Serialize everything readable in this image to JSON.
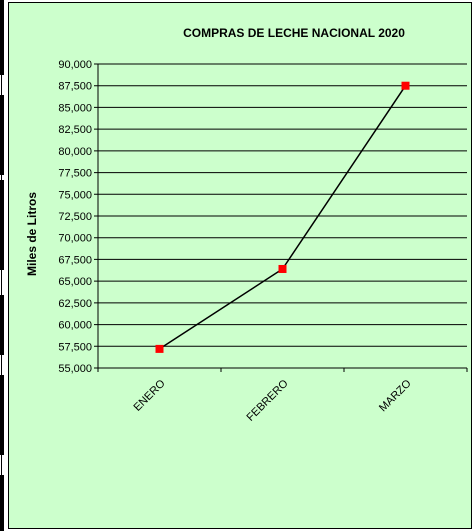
{
  "chart_data": {
    "type": "line",
    "title": "COMPRAS DE LECHE NACIONAL 2020",
    "y_label": "Miles de Litros",
    "categories": [
      "ENERO",
      "FEBRERO",
      "MARZO"
    ],
    "values": [
      57200,
      66400,
      87500
    ],
    "color": "#000000",
    "marker_color": "#ff0000",
    "ylim": [
      55000,
      90000
    ],
    "yticks": [
      {
        "value": 55000,
        "label": "55,000"
      },
      {
        "value": 57500,
        "label": "57,500"
      },
      {
        "value": 60000,
        "label": "60,000"
      },
      {
        "value": 62500,
        "label": "62,500"
      },
      {
        "value": 65000,
        "label": "65,000"
      },
      {
        "value": 67500,
        "label": "67,500"
      },
      {
        "value": 70000,
        "label": "70,000"
      },
      {
        "value": 72500,
        "label": "72,500"
      },
      {
        "value": 75000,
        "label": "75,000"
      },
      {
        "value": 77500,
        "label": "77,500"
      },
      {
        "value": 80000,
        "label": "80,000"
      },
      {
        "value": 82500,
        "label": "82,500"
      },
      {
        "value": 85000,
        "label": "85,000"
      },
      {
        "value": 87500,
        "label": "87,500"
      },
      {
        "value": 90000,
        "label": "90,000"
      }
    ],
    "grid": true,
    "background": "#ccffcc"
  }
}
